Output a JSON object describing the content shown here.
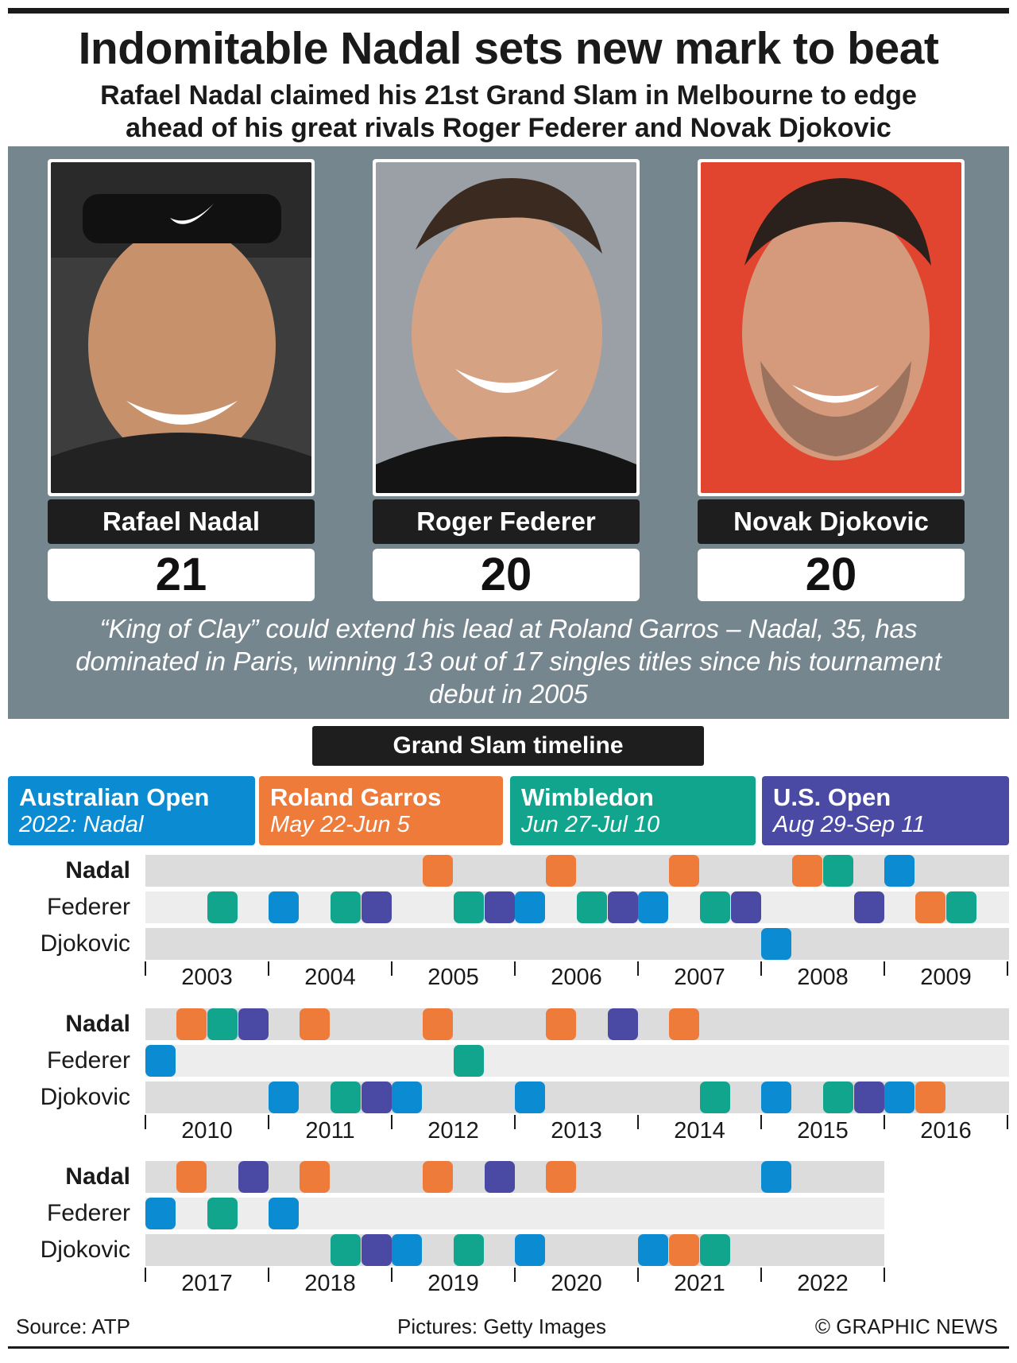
{
  "header": {
    "title": "Indomitable Nadal sets new mark to beat",
    "subtitle": "Rafael Nadal claimed his 21st Grand Slam in Melbourne to edge ahead of his great rivals Roger Federer and Novak Djokovic"
  },
  "players": [
    {
      "name": "Rafael Nadal",
      "titles": "21"
    },
    {
      "name": "Roger Federer",
      "titles": "20"
    },
    {
      "name": "Novak Djokovic",
      "titles": "20"
    }
  ],
  "quote": "“King of Clay” could extend his lead at Roland Garros – Nadal, 35, has dominated in Paris, winning 13 out of 17 singles titles since his tournament debut in 2005",
  "timeline": {
    "heading": "Grand Slam timeline",
    "legend": [
      {
        "key": "AO",
        "name": "Australian Open",
        "detail": "2022: Nadal",
        "color": "#0a8bd2"
      },
      {
        "key": "RG",
        "name": "Roland Garros",
        "detail": "May 22-Jun 5",
        "color": "#ee7b3a"
      },
      {
        "key": "W",
        "name": "Wimbledon",
        "detail": "Jun 27-Jul 10",
        "color": "#12a58e"
      },
      {
        "key": "US",
        "name": "U.S. Open",
        "detail": "Aug 29-Sep 11",
        "color": "#4a4aa4"
      }
    ],
    "blocks": [
      {
        "years": [
          "2003",
          "2004",
          "2005",
          "2006",
          "2007",
          "2008",
          "2009"
        ],
        "rows": [
          {
            "player": "Nadal",
            "wins": [
              {
                "year": "2005",
                "slam": "RG"
              },
              {
                "year": "2006",
                "slam": "RG"
              },
              {
                "year": "2007",
                "slam": "RG"
              },
              {
                "year": "2008",
                "slam": "RG"
              },
              {
                "year": "2008",
                "slam": "W"
              },
              {
                "year": "2009",
                "slam": "AO"
              }
            ]
          },
          {
            "player": "Federer",
            "wins": [
              {
                "year": "2003",
                "slam": "W"
              },
              {
                "year": "2004",
                "slam": "AO"
              },
              {
                "year": "2004",
                "slam": "W"
              },
              {
                "year": "2004",
                "slam": "US"
              },
              {
                "year": "2005",
                "slam": "W"
              },
              {
                "year": "2005",
                "slam": "US"
              },
              {
                "year": "2006",
                "slam": "AO"
              },
              {
                "year": "2006",
                "slam": "W"
              },
              {
                "year": "2006",
                "slam": "US"
              },
              {
                "year": "2007",
                "slam": "AO"
              },
              {
                "year": "2007",
                "slam": "W"
              },
              {
                "year": "2007",
                "slam": "US"
              },
              {
                "year": "2008",
                "slam": "US"
              },
              {
                "year": "2009",
                "slam": "RG"
              },
              {
                "year": "2009",
                "slam": "W"
              }
            ]
          },
          {
            "player": "Djokovic",
            "wins": [
              {
                "year": "2008",
                "slam": "AO"
              }
            ]
          }
        ]
      },
      {
        "years": [
          "2010",
          "2011",
          "2012",
          "2013",
          "2014",
          "2015",
          "2016"
        ],
        "rows": [
          {
            "player": "Nadal",
            "wins": [
              {
                "year": "2010",
                "slam": "RG"
              },
              {
                "year": "2010",
                "slam": "W"
              },
              {
                "year": "2010",
                "slam": "US"
              },
              {
                "year": "2011",
                "slam": "RG"
              },
              {
                "year": "2012",
                "slam": "RG"
              },
              {
                "year": "2013",
                "slam": "RG"
              },
              {
                "year": "2013",
                "slam": "US"
              },
              {
                "year": "2014",
                "slam": "RG"
              }
            ]
          },
          {
            "player": "Federer",
            "wins": [
              {
                "year": "2010",
                "slam": "AO"
              },
              {
                "year": "2012",
                "slam": "W"
              }
            ]
          },
          {
            "player": "Djokovic",
            "wins": [
              {
                "year": "2011",
                "slam": "AO"
              },
              {
                "year": "2011",
                "slam": "W"
              },
              {
                "year": "2011",
                "slam": "US"
              },
              {
                "year": "2012",
                "slam": "AO"
              },
              {
                "year": "2013",
                "slam": "AO"
              },
              {
                "year": "2014",
                "slam": "W"
              },
              {
                "year": "2015",
                "slam": "AO"
              },
              {
                "year": "2015",
                "slam": "W"
              },
              {
                "year": "2015",
                "slam": "US"
              },
              {
                "year": "2016",
                "slam": "AO"
              },
              {
                "year": "2016",
                "slam": "RG"
              }
            ]
          }
        ]
      },
      {
        "years": [
          "2017",
          "2018",
          "2019",
          "2020",
          "2021",
          "2022"
        ],
        "rows": [
          {
            "player": "Nadal",
            "wins": [
              {
                "year": "2017",
                "slam": "RG"
              },
              {
                "year": "2017",
                "slam": "US"
              },
              {
                "year": "2018",
                "slam": "RG"
              },
              {
                "year": "2019",
                "slam": "RG"
              },
              {
                "year": "2019",
                "slam": "US"
              },
              {
                "year": "2020",
                "slam": "RG"
              },
              {
                "year": "2022",
                "slam": "AO"
              }
            ]
          },
          {
            "player": "Federer",
            "wins": [
              {
                "year": "2017",
                "slam": "AO"
              },
              {
                "year": "2017",
                "slam": "W"
              },
              {
                "year": "2018",
                "slam": "AO"
              }
            ]
          },
          {
            "player": "Djokovic",
            "wins": [
              {
                "year": "2018",
                "slam": "W"
              },
              {
                "year": "2018",
                "slam": "US"
              },
              {
                "year": "2019",
                "slam": "AO"
              },
              {
                "year": "2019",
                "slam": "W"
              },
              {
                "year": "2020",
                "slam": "AO"
              },
              {
                "year": "2021",
                "slam": "AO"
              },
              {
                "year": "2021",
                "slam": "RG"
              },
              {
                "year": "2021",
                "slam": "W"
              }
            ]
          }
        ]
      }
    ]
  },
  "footer": {
    "source": "Source: ATP",
    "pictures": "Pictures: Getty Images",
    "credit": "© GRAPHIC NEWS"
  }
}
